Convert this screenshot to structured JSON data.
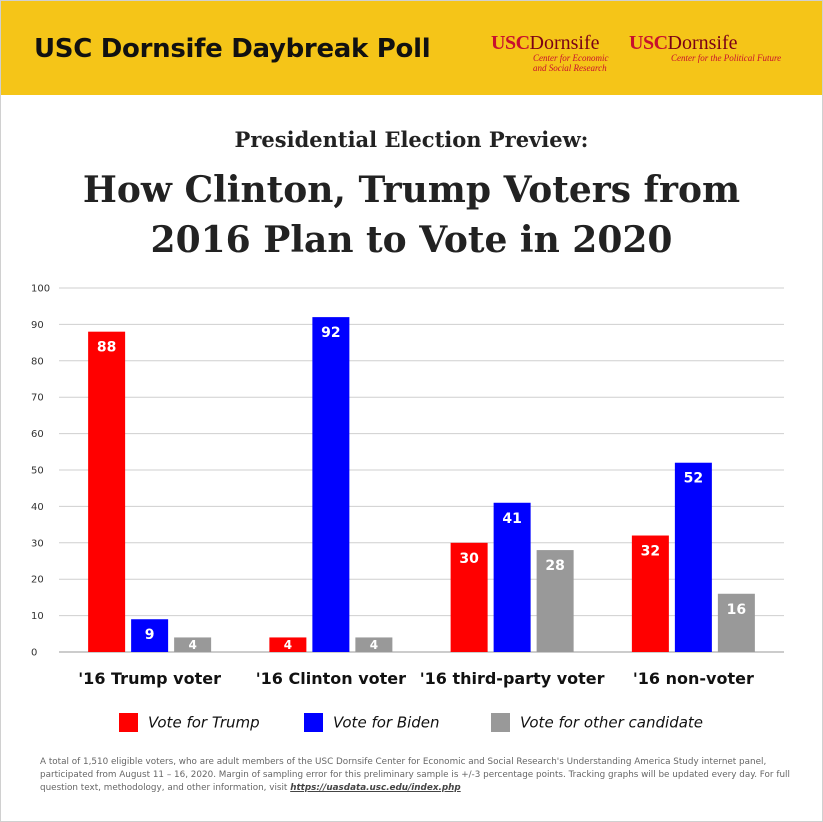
{
  "header": {
    "title": "USC Dornsife Daybreak Poll",
    "logos": [
      {
        "usc": "USC",
        "dornsife": "Dornsife",
        "lines": [
          "Center for Economic",
          "and Social Research"
        ]
      },
      {
        "usc": "USC",
        "dornsife": "Dornsife",
        "lines": [
          "Center for the Political Future"
        ]
      }
    ],
    "brand_colors": {
      "banner": "#f5c518",
      "usc_red": "#c8102e",
      "cardinal": "#7a0016"
    }
  },
  "chart_data": {
    "type": "bar",
    "subtitle": "Presidential Election Preview:",
    "title_lines": [
      "How Clinton, Trump Voters from",
      "2016 Plan to Vote in 2020"
    ],
    "categories": [
      "'16 Trump voter",
      "'16 Clinton voter",
      "'16 third-party voter",
      "'16 non-voter"
    ],
    "series": [
      {
        "name": "Vote for Trump",
        "color": "#ff0000",
        "values": [
          88,
          4,
          30,
          32
        ]
      },
      {
        "name": "Vote for Biden",
        "color": "#0000ff",
        "values": [
          9,
          92,
          41,
          52
        ]
      },
      {
        "name": "Vote for other candidate",
        "color": "#999999",
        "values": [
          4,
          4,
          28,
          16
        ]
      }
    ],
    "ylim": [
      0,
      100
    ],
    "yticks": [
      "0",
      "10",
      "20",
      "30",
      "40",
      "50",
      "60",
      "70",
      "80",
      "90",
      "100"
    ],
    "grid": true,
    "legend": "bottom"
  },
  "footnote": {
    "text": "A total of 1,510 eligible voters, who are adult members of the USC Dornsife Center for Economic and Social Research's Understanding America Study internet panel, participated from August 11 – 16, 2020.  Margin of sampling error for this preliminary sample is +/-3 percentage points. Tracking graphs will be updated every day. For full question text, methodology, and other information, visit ",
    "link": "https://uasdata.usc.edu/index.php"
  }
}
